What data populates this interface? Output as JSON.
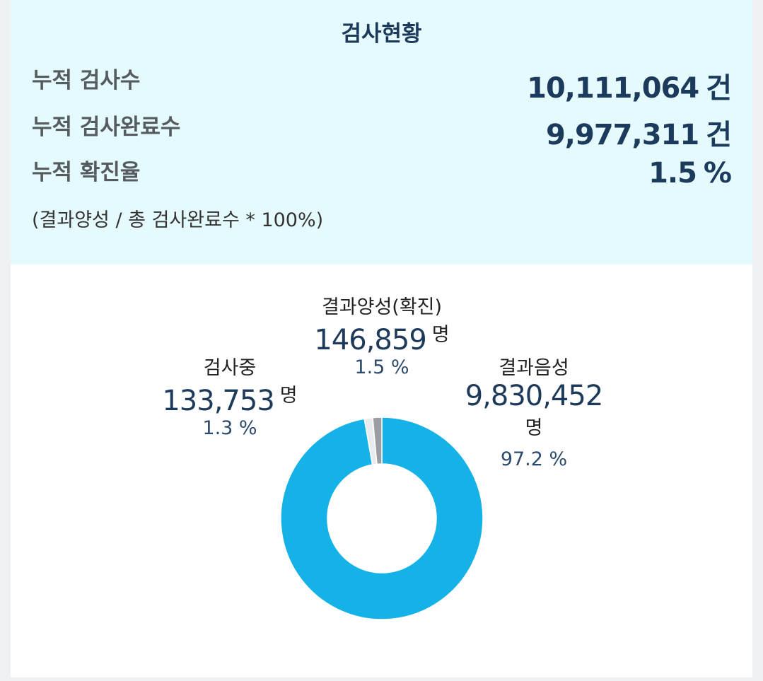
{
  "summary": {
    "title": "검사현황",
    "rows": [
      {
        "label": "누적 검사수",
        "value": "10,111,064",
        "unit": "건"
      },
      {
        "label": "누적 검사완료수",
        "value": "9,977,311",
        "unit": "건"
      },
      {
        "label": "누적 확진율",
        "value": "1.5",
        "unit": "%"
      }
    ],
    "formula": "(결과양성 / 총 검사완료수 * 100%)"
  },
  "chart": {
    "categories": [
      {
        "name": "결과양성(확진)",
        "count": "146,859",
        "unit": "명",
        "pct": "1.5 %"
      },
      {
        "name": "검사중",
        "count": "133,753",
        "unit": "명",
        "pct": "1.3 %"
      },
      {
        "name": "결과음성",
        "count": "9,830,452",
        "unit": "명",
        "pct": "97.2 %"
      }
    ]
  },
  "chart_data": {
    "type": "pie",
    "categories": [
      "결과음성",
      "검사중",
      "결과양성(확진)"
    ],
    "values": [
      9830452,
      133753,
      146859
    ],
    "colors": [
      "#14b2e6",
      "#e9ebee",
      "#9a9ea3"
    ]
  }
}
